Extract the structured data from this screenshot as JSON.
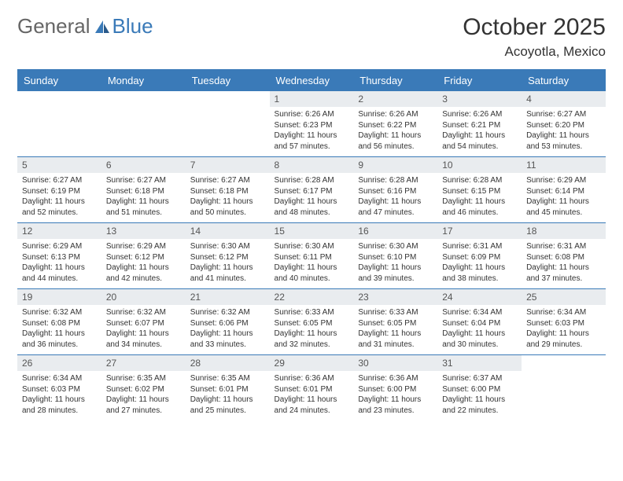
{
  "logo": {
    "text_general": "General",
    "text_blue": "Blue"
  },
  "title": "October 2025",
  "location": "Acoyotla, Mexico",
  "colors": {
    "header_bg": "#3a7ab8",
    "header_text": "#ffffff",
    "daynum_bg": "#e9ecef",
    "border": "#3a7ab8",
    "text": "#333333",
    "logo_gray": "#666666",
    "logo_blue": "#3a7ab8",
    "page_bg": "#ffffff"
  },
  "day_headers": [
    "Sunday",
    "Monday",
    "Tuesday",
    "Wednesday",
    "Thursday",
    "Friday",
    "Saturday"
  ],
  "weeks": [
    [
      {
        "n": "",
        "sr": "",
        "ss": "",
        "dl": ""
      },
      {
        "n": "",
        "sr": "",
        "ss": "",
        "dl": ""
      },
      {
        "n": "",
        "sr": "",
        "ss": "",
        "dl": ""
      },
      {
        "n": "1",
        "sr": "Sunrise: 6:26 AM",
        "ss": "Sunset: 6:23 PM",
        "dl": "Daylight: 11 hours and 57 minutes."
      },
      {
        "n": "2",
        "sr": "Sunrise: 6:26 AM",
        "ss": "Sunset: 6:22 PM",
        "dl": "Daylight: 11 hours and 56 minutes."
      },
      {
        "n": "3",
        "sr": "Sunrise: 6:26 AM",
        "ss": "Sunset: 6:21 PM",
        "dl": "Daylight: 11 hours and 54 minutes."
      },
      {
        "n": "4",
        "sr": "Sunrise: 6:27 AM",
        "ss": "Sunset: 6:20 PM",
        "dl": "Daylight: 11 hours and 53 minutes."
      }
    ],
    [
      {
        "n": "5",
        "sr": "Sunrise: 6:27 AM",
        "ss": "Sunset: 6:19 PM",
        "dl": "Daylight: 11 hours and 52 minutes."
      },
      {
        "n": "6",
        "sr": "Sunrise: 6:27 AM",
        "ss": "Sunset: 6:18 PM",
        "dl": "Daylight: 11 hours and 51 minutes."
      },
      {
        "n": "7",
        "sr": "Sunrise: 6:27 AM",
        "ss": "Sunset: 6:18 PM",
        "dl": "Daylight: 11 hours and 50 minutes."
      },
      {
        "n": "8",
        "sr": "Sunrise: 6:28 AM",
        "ss": "Sunset: 6:17 PM",
        "dl": "Daylight: 11 hours and 48 minutes."
      },
      {
        "n": "9",
        "sr": "Sunrise: 6:28 AM",
        "ss": "Sunset: 6:16 PM",
        "dl": "Daylight: 11 hours and 47 minutes."
      },
      {
        "n": "10",
        "sr": "Sunrise: 6:28 AM",
        "ss": "Sunset: 6:15 PM",
        "dl": "Daylight: 11 hours and 46 minutes."
      },
      {
        "n": "11",
        "sr": "Sunrise: 6:29 AM",
        "ss": "Sunset: 6:14 PM",
        "dl": "Daylight: 11 hours and 45 minutes."
      }
    ],
    [
      {
        "n": "12",
        "sr": "Sunrise: 6:29 AM",
        "ss": "Sunset: 6:13 PM",
        "dl": "Daylight: 11 hours and 44 minutes."
      },
      {
        "n": "13",
        "sr": "Sunrise: 6:29 AM",
        "ss": "Sunset: 6:12 PM",
        "dl": "Daylight: 11 hours and 42 minutes."
      },
      {
        "n": "14",
        "sr": "Sunrise: 6:30 AM",
        "ss": "Sunset: 6:12 PM",
        "dl": "Daylight: 11 hours and 41 minutes."
      },
      {
        "n": "15",
        "sr": "Sunrise: 6:30 AM",
        "ss": "Sunset: 6:11 PM",
        "dl": "Daylight: 11 hours and 40 minutes."
      },
      {
        "n": "16",
        "sr": "Sunrise: 6:30 AM",
        "ss": "Sunset: 6:10 PM",
        "dl": "Daylight: 11 hours and 39 minutes."
      },
      {
        "n": "17",
        "sr": "Sunrise: 6:31 AM",
        "ss": "Sunset: 6:09 PM",
        "dl": "Daylight: 11 hours and 38 minutes."
      },
      {
        "n": "18",
        "sr": "Sunrise: 6:31 AM",
        "ss": "Sunset: 6:08 PM",
        "dl": "Daylight: 11 hours and 37 minutes."
      }
    ],
    [
      {
        "n": "19",
        "sr": "Sunrise: 6:32 AM",
        "ss": "Sunset: 6:08 PM",
        "dl": "Daylight: 11 hours and 36 minutes."
      },
      {
        "n": "20",
        "sr": "Sunrise: 6:32 AM",
        "ss": "Sunset: 6:07 PM",
        "dl": "Daylight: 11 hours and 34 minutes."
      },
      {
        "n": "21",
        "sr": "Sunrise: 6:32 AM",
        "ss": "Sunset: 6:06 PM",
        "dl": "Daylight: 11 hours and 33 minutes."
      },
      {
        "n": "22",
        "sr": "Sunrise: 6:33 AM",
        "ss": "Sunset: 6:05 PM",
        "dl": "Daylight: 11 hours and 32 minutes."
      },
      {
        "n": "23",
        "sr": "Sunrise: 6:33 AM",
        "ss": "Sunset: 6:05 PM",
        "dl": "Daylight: 11 hours and 31 minutes."
      },
      {
        "n": "24",
        "sr": "Sunrise: 6:34 AM",
        "ss": "Sunset: 6:04 PM",
        "dl": "Daylight: 11 hours and 30 minutes."
      },
      {
        "n": "25",
        "sr": "Sunrise: 6:34 AM",
        "ss": "Sunset: 6:03 PM",
        "dl": "Daylight: 11 hours and 29 minutes."
      }
    ],
    [
      {
        "n": "26",
        "sr": "Sunrise: 6:34 AM",
        "ss": "Sunset: 6:03 PM",
        "dl": "Daylight: 11 hours and 28 minutes."
      },
      {
        "n": "27",
        "sr": "Sunrise: 6:35 AM",
        "ss": "Sunset: 6:02 PM",
        "dl": "Daylight: 11 hours and 27 minutes."
      },
      {
        "n": "28",
        "sr": "Sunrise: 6:35 AM",
        "ss": "Sunset: 6:01 PM",
        "dl": "Daylight: 11 hours and 25 minutes."
      },
      {
        "n": "29",
        "sr": "Sunrise: 6:36 AM",
        "ss": "Sunset: 6:01 PM",
        "dl": "Daylight: 11 hours and 24 minutes."
      },
      {
        "n": "30",
        "sr": "Sunrise: 6:36 AM",
        "ss": "Sunset: 6:00 PM",
        "dl": "Daylight: 11 hours and 23 minutes."
      },
      {
        "n": "31",
        "sr": "Sunrise: 6:37 AM",
        "ss": "Sunset: 6:00 PM",
        "dl": "Daylight: 11 hours and 22 minutes."
      },
      {
        "n": "",
        "sr": "",
        "ss": "",
        "dl": ""
      }
    ]
  ]
}
